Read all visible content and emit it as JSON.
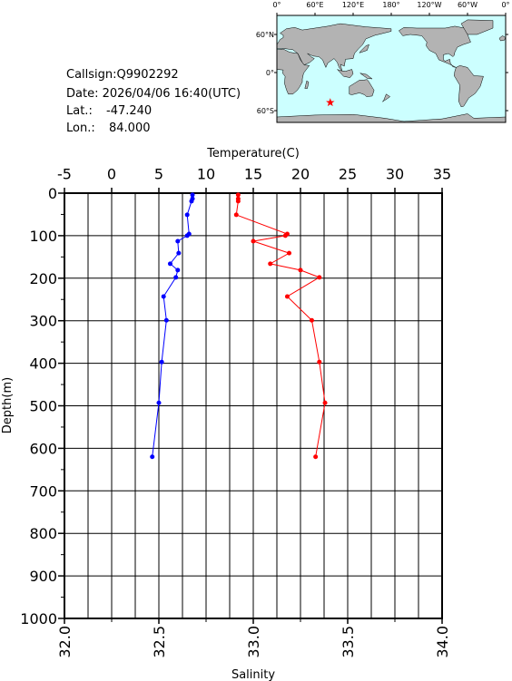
{
  "info": {
    "callsign": "Callsign:Q9902292",
    "date": "Date:  2026/04/06 16:40(UTC)",
    "lat_label": "Lat.:",
    "lat": "-47.240",
    "lon_label": "Lon.:",
    "lon": "84.000"
  },
  "map": {
    "lon_labels": [
      "0°",
      "60°E",
      "120°E",
      "180°",
      "120°W",
      "60°W",
      "0°"
    ],
    "lat_labels": [
      "60°N",
      "0°",
      "60°S"
    ],
    "marker_color": "#ff0000"
  },
  "chart_data": {
    "type": "profile",
    "depth": [
      4,
      13,
      19,
      51,
      96,
      100,
      113,
      141,
      166,
      181,
      198,
      243,
      299,
      397,
      493,
      620
    ],
    "top_axis": {
      "label": "Temperature(C)",
      "lim": [
        -5,
        35
      ],
      "ticks": [
        -5,
        0,
        5,
        10,
        15,
        20,
        25,
        30,
        35
      ]
    },
    "bottom_axis": {
      "label": "Salinity",
      "lim": [
        32.0,
        34.0
      ],
      "ticks": [
        {
          "value": 32,
          "label": "32.0"
        },
        32.5,
        {
          "value": 33,
          "label": "33.0"
        },
        33.5,
        {
          "value": 34,
          "label": "34.0"
        }
      ]
    },
    "y_axis": {
      "label": "Depth(m)",
      "lim": [
        0,
        1000
      ],
      "ticks": [
        0,
        100,
        200,
        300,
        400,
        500,
        600,
        700,
        800,
        900,
        1000
      ],
      "inverted": true
    },
    "grid": true,
    "series": [
      {
        "axis": "top",
        "color": "#0000ff",
        "values": [
          8.56,
          8.56,
          8.46,
          8.0,
          8.2,
          8.0,
          7.0,
          7.1,
          6.2,
          7.0,
          6.8,
          5.5,
          5.8,
          5.3,
          5.0,
          4.3
        ]
      },
      {
        "axis": "bottom",
        "color": "#ff0000",
        "values": [
          32.92,
          32.92,
          32.92,
          32.91,
          33.18,
          33.17,
          33.0,
          33.19,
          33.09,
          33.25,
          33.35,
          33.18,
          33.31,
          33.35,
          33.38,
          33.33
        ]
      }
    ]
  }
}
